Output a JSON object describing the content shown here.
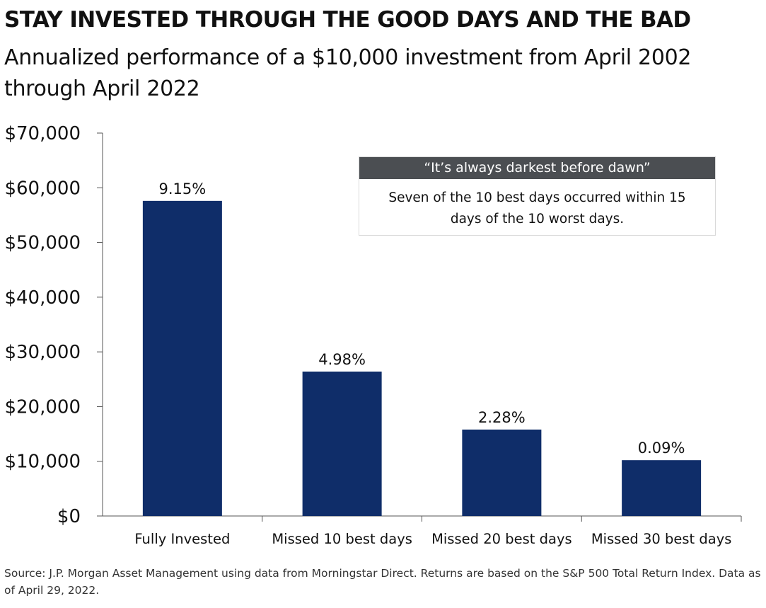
{
  "title": "STAY INVESTED THROUGH THE GOOD DAYS AND THE BAD",
  "subtitle": "Annualized performance of a $10,000 investment from April 2002 through April 2022",
  "callout": {
    "heading": "“It’s always darkest before dawn”",
    "text": "Seven of the 10 best days occurred within 15 days of the 10 worst days."
  },
  "footnote": "Source: J.P. Morgan Asset Management using data from Morningstar Direct. Returns are based on the S&P 500 Total Return Index. Data as of April 29, 2022.",
  "colors": {
    "bar": "#0f2d69",
    "axis": "#555555"
  },
  "chart_data": {
    "type": "bar",
    "categories": [
      "Fully Invested",
      "Missed 10 best days",
      "Missed 20 best days",
      "Missed 30 best days"
    ],
    "values": [
      57600,
      26400,
      15800,
      10200
    ],
    "data_labels": [
      "9.15%",
      "4.98%",
      "2.28%",
      "0.09%"
    ],
    "y_ticks": [
      0,
      10000,
      20000,
      30000,
      40000,
      50000,
      60000,
      70000
    ],
    "y_tick_labels": [
      "$0",
      "$10,000",
      "$20,000",
      "$30,000",
      "$40,000",
      "$50,000",
      "$60,000",
      "$70,000"
    ],
    "ylim": [
      0,
      70000
    ],
    "grid": false
  }
}
